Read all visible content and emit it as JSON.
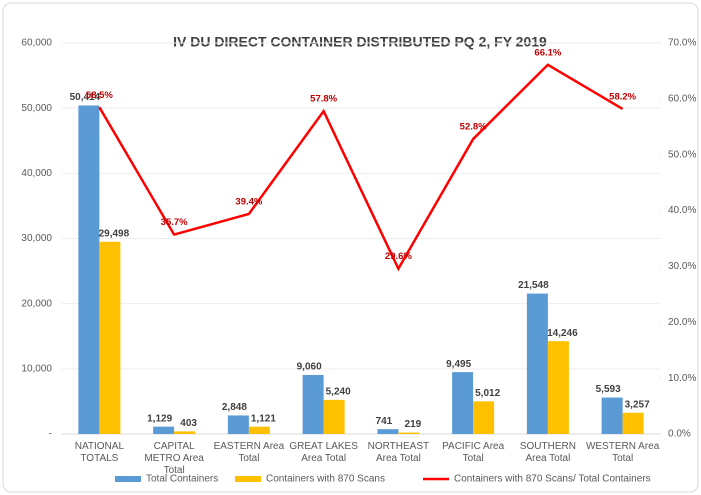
{
  "chart_data": {
    "type": "bar-line",
    "title": "IV DU DIRECT CONTAINER DISTRIBUTED PQ 2, FY 2019",
    "categories": [
      "NATIONAL TOTALS",
      "CAPITAL METRO Area Total",
      "EASTERN Area Total",
      "GREAT LAKES Area Total",
      "NORTHEAST Area Total",
      "PACIFIC Area Total",
      "SOUTHERN Area Total",
      "WESTERN Area Total"
    ],
    "series": [
      {
        "name": "Total Containers",
        "color": "#5b9bd5",
        "type": "bar",
        "values": [
          50414,
          1129,
          2848,
          9060,
          741,
          9495,
          21548,
          5593
        ],
        "value_labels": [
          "50,414",
          "1,129",
          "2,848",
          "9,060",
          "741",
          "9,495",
          "21,548",
          "5,593"
        ]
      },
      {
        "name": "Containers with 870 Scans",
        "color": "#ffc000",
        "type": "bar",
        "values": [
          29498,
          403,
          1121,
          5240,
          219,
          5012,
          14246,
          3257
        ],
        "value_labels": [
          "29,498",
          "403",
          "1,121",
          "5,240",
          "219",
          "5,012",
          "14,246",
          "3,257"
        ]
      },
      {
        "name": "Containers with 870 Scans/ Total Containers",
        "color": "#ff0000",
        "type": "line",
        "axis": "y2",
        "values": [
          58.5,
          35.7,
          39.4,
          57.8,
          29.6,
          52.8,
          66.1,
          58.2
        ],
        "value_labels": [
          "58.5%",
          "35.7%",
          "39.4%",
          "57.8%",
          "29.6%",
          "52.8%",
          "66.1%",
          "58.2%"
        ]
      }
    ],
    "ylim": [
      0,
      60000
    ],
    "yticks": [
      {
        "value": 0,
        "label": "-"
      },
      {
        "value": 10000,
        "label": "10,000"
      },
      {
        "value": 20000,
        "label": "20,000"
      },
      {
        "value": 30000,
        "label": "30,000"
      },
      {
        "value": 40000,
        "label": "40,000"
      },
      {
        "value": 50000,
        "label": "50,000"
      },
      {
        "value": 60000,
        "label": "60,000"
      }
    ],
    "y2lim": [
      0,
      70
    ],
    "y2ticks": [
      {
        "value": 0,
        "label": "0.0%"
      },
      {
        "value": 10,
        "label": "10.0%"
      },
      {
        "value": 20,
        "label": "20.0%"
      },
      {
        "value": 30,
        "label": "30.0%"
      },
      {
        "value": 40,
        "label": "40.0%"
      },
      {
        "value": 50,
        "label": "50.0%"
      },
      {
        "value": 60,
        "label": "60.0%"
      },
      {
        "value": 70,
        "label": "70.0%"
      }
    ],
    "grid": true,
    "legend": "bottom"
  }
}
